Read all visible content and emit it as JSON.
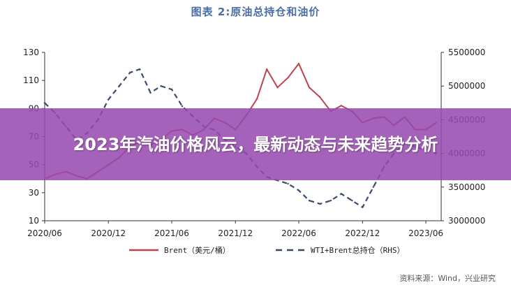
{
  "chart_data": {
    "type": "line",
    "title": "图表 2:原油总持仓和油价",
    "x_ticks": [
      "2020/06",
      "2020/12",
      "2021/06",
      "2021/12",
      "2022/06",
      "2022/12",
      "2023/06"
    ],
    "y_left": {
      "ticks": [
        "130",
        "110",
        "90",
        "70",
        "50",
        "30",
        "10"
      ],
      "range": [
        10,
        130
      ]
    },
    "y_right": {
      "ticks": [
        "5500000",
        "5000000",
        "4500000",
        "4000000",
        "3500000",
        "3000000"
      ],
      "range": [
        3000000,
        5500000
      ]
    },
    "series": [
      {
        "name": "Brent（美元/桶）",
        "axis": "left",
        "color": "#c0404e",
        "dash": "solid",
        "x": [
          "2020-06",
          "2020-07",
          "2020-08",
          "2020-09",
          "2020-10",
          "2020-11",
          "2020-12",
          "2021-01",
          "2021-02",
          "2021-03",
          "2021-04",
          "2021-05",
          "2021-06",
          "2021-07",
          "2021-08",
          "2021-09",
          "2021-10",
          "2021-11",
          "2021-12",
          "2022-01",
          "2022-02",
          "2022-03",
          "2022-04",
          "2022-05",
          "2022-06",
          "2022-07",
          "2022-08",
          "2022-09",
          "2022-10",
          "2022-11",
          "2022-12",
          "2023-01",
          "2023-02",
          "2023-03",
          "2023-04",
          "2023-05",
          "2023-06",
          "2023-07"
        ],
        "values": [
          40,
          43,
          45,
          42,
          40,
          45,
          50,
          55,
          63,
          66,
          64,
          68,
          74,
          75,
          71,
          75,
          83,
          80,
          75,
          85,
          97,
          118,
          105,
          112,
          122,
          105,
          98,
          88,
          92,
          88,
          80,
          83,
          84,
          78,
          84,
          75,
          75,
          80
        ]
      },
      {
        "name": "WTI+Brent总持仓（RHS）",
        "axis": "right",
        "color": "#3a4a6a",
        "dash": "dashed",
        "x": [
          "2020-06",
          "2020-07",
          "2020-08",
          "2020-09",
          "2020-10",
          "2020-11",
          "2020-12",
          "2021-01",
          "2021-02",
          "2021-03",
          "2021-04",
          "2021-05",
          "2021-06",
          "2021-07",
          "2021-08",
          "2021-09",
          "2021-10",
          "2021-11",
          "2021-12",
          "2022-01",
          "2022-02",
          "2022-03",
          "2022-04",
          "2022-05",
          "2022-06",
          "2022-07",
          "2022-08",
          "2022-09",
          "2022-10",
          "2022-11",
          "2022-12",
          "2023-01",
          "2023-02",
          "2023-03",
          "2023-04",
          "2023-05",
          "2023-06",
          "2023-07"
        ],
        "values": [
          4750000,
          4600000,
          4400000,
          4200000,
          4300000,
          4500000,
          4800000,
          5000000,
          5200000,
          5250000,
          4900000,
          5000000,
          4950000,
          4700000,
          4550000,
          4400000,
          4350000,
          4200000,
          4100000,
          4000000,
          3800000,
          3650000,
          3600000,
          3550000,
          3450000,
          3300000,
          3250000,
          3300000,
          3400000,
          3300000,
          3200000,
          3500000,
          3800000,
          4000000,
          4150000,
          4100000,
          4050000,
          4000000
        ]
      }
    ],
    "legend": [
      {
        "label": "Brent（美元/桶）"
      },
      {
        "label": "WTI+Brent总持仓（RHS）"
      }
    ],
    "legend_position": "bottom",
    "grid": false
  },
  "overlay": {
    "headline": "2023年汽油价格风云，最新动态与未来趋势分析"
  },
  "source_note": "资料来源：Wind，兴业研究"
}
